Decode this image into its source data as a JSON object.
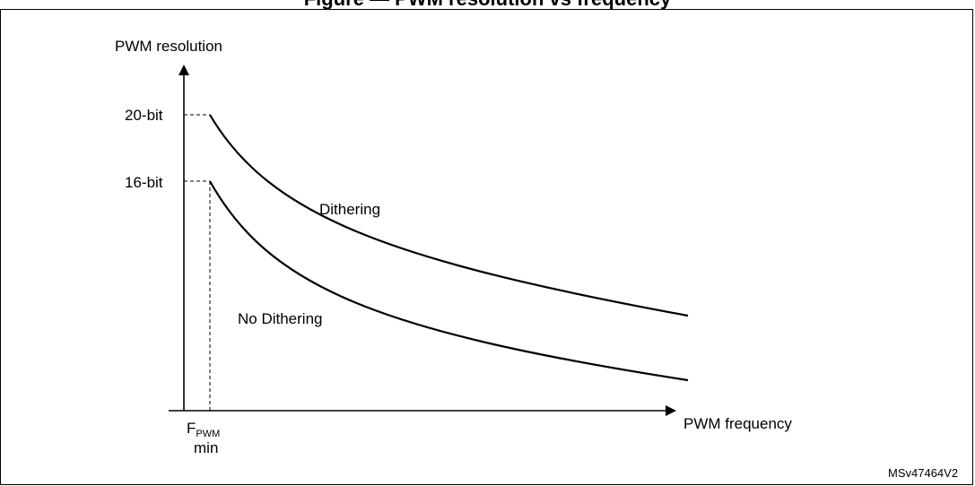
{
  "figure": {
    "caption_partial": "Figure — PWM resolution vs frequency",
    "reference_mark": "MSv47464V2"
  },
  "chart_data": {
    "type": "line",
    "xlabel": "PWM frequency",
    "ylabel": "PWM resolution",
    "x_tick_main": "F",
    "x_tick_sub": "PWM",
    "x_tick_line2": "min",
    "y_ticks": [
      "20-bit",
      "16-bit"
    ],
    "series": [
      {
        "name": "Dithering",
        "start_level": "20-bit"
      },
      {
        "name": "No Dithering",
        "start_level": "16-bit"
      }
    ],
    "grid": false
  }
}
